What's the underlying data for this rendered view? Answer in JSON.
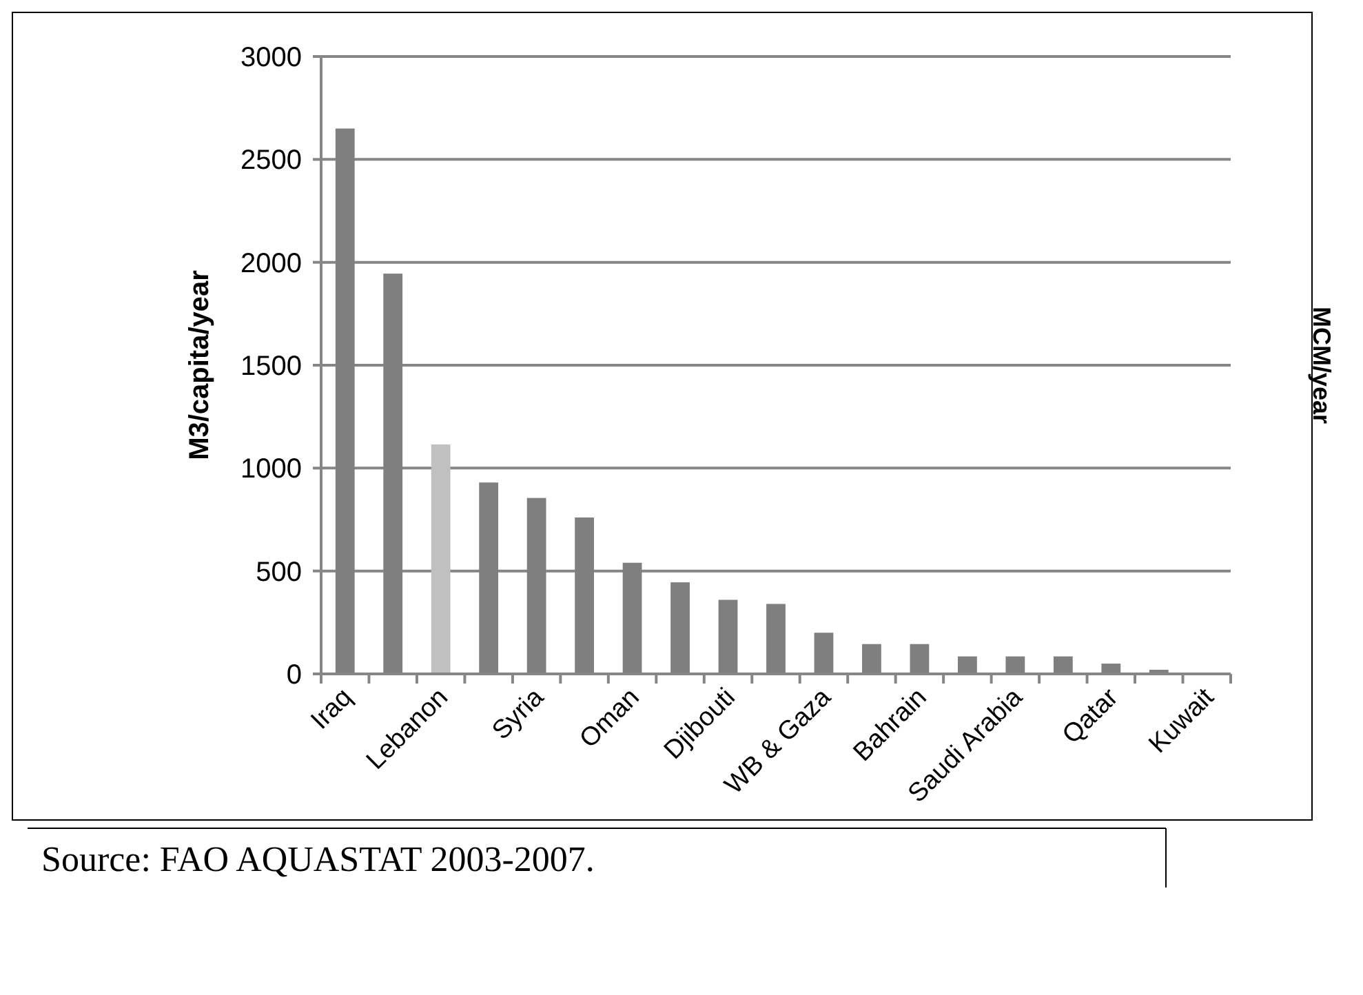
{
  "chart_data": {
    "type": "bar",
    "ylabel": "M3/capita/year",
    "y2label": "MCM/year",
    "categories": [
      "Iraq",
      null,
      "Lebanon",
      null,
      "Syria",
      null,
      "Oman",
      null,
      "Djibouti",
      null,
      "WB & Gaza",
      null,
      "Bahrain",
      null,
      "Saudi Arabia",
      null,
      "Qatar",
      null,
      "Kuwait"
    ],
    "values": [
      2650,
      1945,
      1115,
      930,
      855,
      760,
      540,
      445,
      360,
      340,
      200,
      145,
      145,
      85,
      85,
      85,
      50,
      20,
      3
    ],
    "colors": [
      "#7f7f7f",
      "#7f7f7f",
      "#c0c0c0",
      "#7f7f7f",
      "#7f7f7f",
      "#7f7f7f",
      "#7f7f7f",
      "#7f7f7f",
      "#7f7f7f",
      "#7f7f7f",
      "#7f7f7f",
      "#7f7f7f",
      "#7f7f7f",
      "#7f7f7f",
      "#7f7f7f",
      "#7f7f7f",
      "#7f7f7f",
      "#7f7f7f",
      "#7f7f7f"
    ],
    "ylim": [
      0,
      3000
    ],
    "yticks": [
      0,
      500,
      1000,
      1500,
      2000,
      2500,
      3000
    ],
    "grid": "y",
    "annotations": [
      "Source: FAO AQUASTAT 2003-2007."
    ]
  }
}
